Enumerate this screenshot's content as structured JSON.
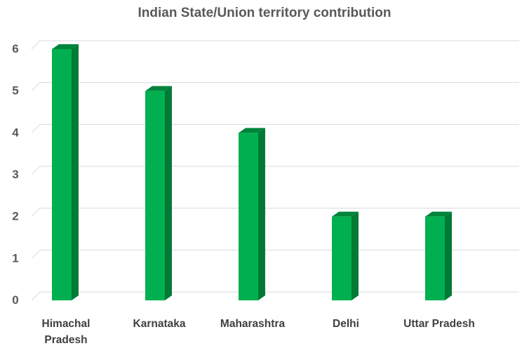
{
  "chart_data": {
    "type": "bar",
    "title": "Indian State/Union territory contribution",
    "xlabel": "",
    "ylabel": "",
    "categories": [
      "Himachal Pradesh",
      "Karnataka",
      "Maharashtra",
      "Delhi",
      "Uttar Pradesh"
    ],
    "values": [
      6,
      5,
      4,
      2,
      2
    ],
    "ylim": [
      0,
      6
    ],
    "yticks": [
      "0",
      "1",
      "2",
      "3",
      "4",
      "5",
      "6"
    ],
    "grid": true,
    "legend": "none",
    "bar_color": "#00B050",
    "bar_side_color": "#007A36",
    "bar_top_color": "#00843C",
    "style": "3d-column"
  }
}
